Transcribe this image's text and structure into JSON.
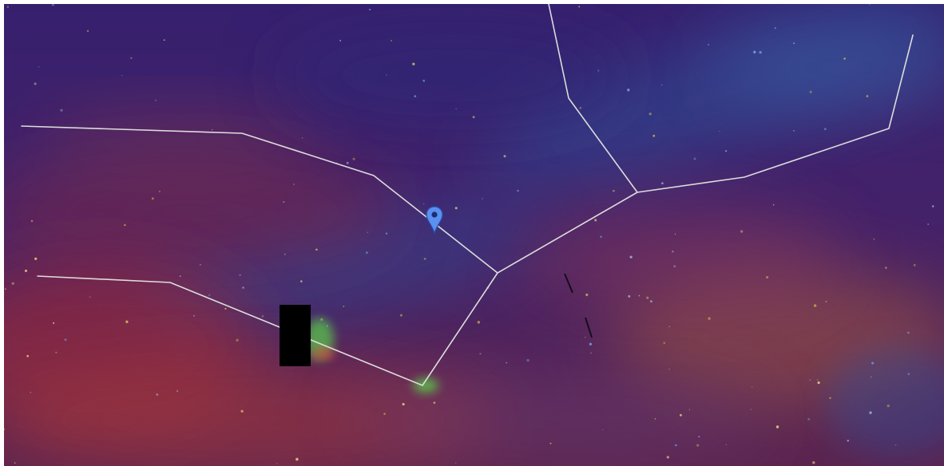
{
  "map": {
    "view": "infrared-sky-survey",
    "constellation_line_color": "#dcdcdc",
    "marker": {
      "icon": "map-pin-icon",
      "color": "#5b8ff0"
    },
    "masked_region": {
      "color": "#000000"
    },
    "palette": {
      "base": "#3a1a6a",
      "blue_band": "#2e4f9a",
      "red_haze": "#9a2a3a",
      "orange_dust": "#b0603a",
      "green_source": "#5ad04a"
    }
  }
}
